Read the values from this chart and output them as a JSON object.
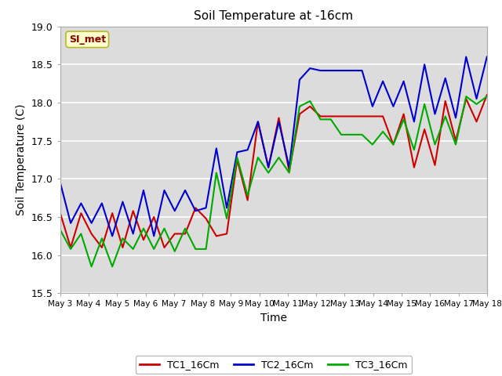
{
  "title": "Soil Temperature at -16cm",
  "xlabel": "Time",
  "ylabel": "Soil Temperature (C)",
  "ylim": [
    15.5,
    19.0
  ],
  "plot_bg_color": "#dcdcdc",
  "fig_bg_color": "#ffffff",
  "grid_color": "#f0f0f0",
  "annotation_text": "SI_met",
  "annotation_color": "#8b0000",
  "annotation_bg": "#ffffcc",
  "annotation_border": "#b8b830",
  "x_tick_labels": [
    "May 3",
    "May 4",
    "May 5",
    "May 6",
    "May 7",
    "May 8",
    "May 9",
    "May 10",
    "May 11",
    "May 12",
    "May 13",
    "May 14",
    "May 15",
    "May 16",
    "May 17",
    "May 18"
  ],
  "tc1_color": "#cc0000",
  "tc2_color": "#0000cc",
  "tc3_color": "#00aa00",
  "legend_labels": [
    "TC1_16Cm",
    "TC2_16Cm",
    "TC3_16Cm"
  ],
  "tc1_y": [
    16.55,
    16.1,
    16.55,
    16.28,
    16.1,
    16.55,
    16.1,
    16.58,
    16.2,
    16.5,
    16.1,
    16.28,
    16.28,
    16.62,
    16.48,
    16.25,
    16.28,
    17.25,
    16.72,
    17.75,
    17.15,
    17.8,
    17.1,
    17.85,
    17.95,
    17.82,
    17.82,
    17.82,
    17.82,
    17.82,
    17.82,
    17.82,
    17.45,
    17.85,
    17.15,
    17.65,
    17.18,
    18.02,
    17.5,
    18.05,
    17.75,
    18.1
  ],
  "tc2_y": [
    16.95,
    16.42,
    16.68,
    16.42,
    16.68,
    16.25,
    16.7,
    16.28,
    16.85,
    16.25,
    16.85,
    16.58,
    16.85,
    16.58,
    16.62,
    17.4,
    16.62,
    17.35,
    17.38,
    17.75,
    17.15,
    17.75,
    17.15,
    18.3,
    18.45,
    18.42,
    18.42,
    18.42,
    18.42,
    18.42,
    17.95,
    18.28,
    17.95,
    18.28,
    17.75,
    18.5,
    17.85,
    18.32,
    17.8,
    18.6,
    18.05,
    18.6
  ],
  "tc3_y": [
    16.33,
    16.08,
    16.28,
    15.85,
    16.22,
    15.85,
    16.22,
    16.08,
    16.35,
    16.08,
    16.35,
    16.05,
    16.35,
    16.08,
    16.08,
    17.08,
    16.48,
    17.28,
    16.78,
    17.28,
    17.08,
    17.28,
    17.08,
    17.95,
    18.02,
    17.78,
    17.78,
    17.58,
    17.58,
    17.58,
    17.45,
    17.62,
    17.45,
    17.78,
    17.38,
    17.98,
    17.45,
    17.82,
    17.45,
    18.08,
    17.98,
    18.08
  ],
  "n_points": 42,
  "yticks": [
    15.5,
    16.0,
    16.5,
    17.0,
    17.5,
    18.0,
    18.5,
    19.0
  ]
}
